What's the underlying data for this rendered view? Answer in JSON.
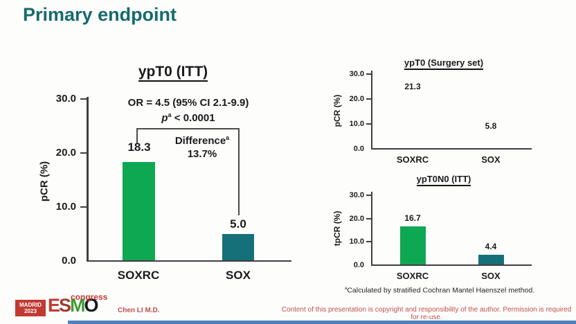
{
  "slide": {
    "title": "Primary endpoint",
    "presenter": "Chen LI M.D.",
    "copyright": "Content of this presentation is copyright and responsibility of the author. Permission is required for re-use.",
    "footnote_sup": "a",
    "footnote_text": "Calculated by stratified Cochran Mantel Haenszel method.",
    "logo": {
      "location": "MADRID",
      "year": "2023",
      "e": "E",
      "s": "S",
      "m": "M",
      "o": "O",
      "suffix": "congress"
    }
  },
  "colors": {
    "title_teal": "#166a6e",
    "bar_soxrc": "#0ea853",
    "bar_sox": "#16707a",
    "accent_red": "#c0504d",
    "footer_bar_blue": "#4f81bd"
  },
  "chart_data": [
    {
      "id": "ypt0-itt",
      "type": "bar",
      "title": "ypT0 (ITT)",
      "categories": [
        "SOXRC",
        "SOX"
      ],
      "values": [
        18.3,
        5.0
      ],
      "value_labels": [
        "18.3",
        "5.0"
      ],
      "ylabel": "pCR (%)",
      "yticks": [
        "30.0",
        "20.0",
        "10.0",
        "0.0"
      ],
      "ylim": [
        0,
        30
      ],
      "grid": false,
      "annotations": {
        "or_line": "OR = 4.5 (95% CI 2.1-9.9)",
        "p_label": "p",
        "p_sup": "a",
        "p_value": " < 0.0001",
        "difference_label": "Difference",
        "difference_sup": "a",
        "difference_value": "13.7%"
      }
    },
    {
      "id": "ypt0-surgery-set",
      "type": "bar",
      "title": "ypT0 (Surgery set)",
      "categories": [
        "SOXRC",
        "SOX"
      ],
      "values": [
        21.3,
        5.8
      ],
      "value_labels": [
        "21.3",
        "5.8"
      ],
      "ylabel": "pCR (%)",
      "yticks": [
        "30.0",
        "20.0",
        "10.0",
        "0.0"
      ],
      "ylim": [
        0,
        30
      ],
      "grid": false
    },
    {
      "id": "ypt0n0-itt",
      "type": "bar",
      "title": "ypT0N0 (ITT)",
      "categories": [
        "SOXRC",
        "SOX"
      ],
      "values": [
        16.7,
        4.4
      ],
      "value_labels": [
        "16.7",
        "4.4"
      ],
      "ylabel": "tpCR (%)",
      "yticks": [
        "30.0",
        "20.0",
        "10.0",
        "0.0"
      ],
      "ylim": [
        0,
        30
      ],
      "grid": false
    }
  ]
}
